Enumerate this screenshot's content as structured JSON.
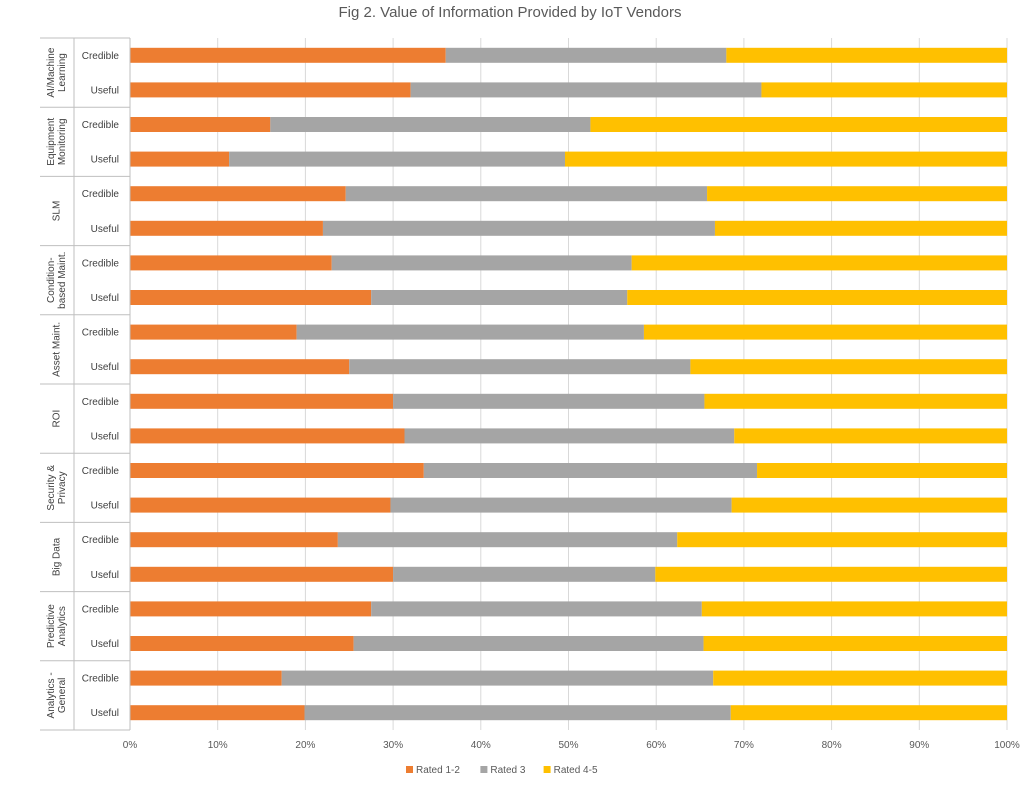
{
  "chart_data": {
    "type": "bar",
    "orientation": "horizontal",
    "stacked": "percent",
    "title": "Fig 2. Value of Information Provided by IoT Vendors",
    "xlabel": "",
    "ylabel": "",
    "xlim": [
      0,
      100
    ],
    "x_ticks": [
      "0%",
      "10%",
      "20%",
      "30%",
      "40%",
      "50%",
      "60%",
      "70%",
      "80%",
      "90%",
      "100%"
    ],
    "grid": true,
    "legend_position": "bottom",
    "groups": [
      {
        "label_lines": [
          "AI/Machine",
          "Learning"
        ],
        "categories": [
          "Credible",
          "Useful"
        ]
      },
      {
        "label_lines": [
          "Equipment",
          "Monitoring"
        ],
        "categories": [
          "Credible",
          "Useful"
        ]
      },
      {
        "label_lines": [
          "SLM"
        ],
        "categories": [
          "Credible",
          "Useful"
        ]
      },
      {
        "label_lines": [
          "Condition-",
          "based Maint."
        ],
        "categories": [
          "Credible",
          "Useful"
        ]
      },
      {
        "label_lines": [
          "Asset Maint."
        ],
        "categories": [
          "Credible",
          "Useful"
        ]
      },
      {
        "label_lines": [
          "ROI"
        ],
        "categories": [
          "Credible",
          "Useful"
        ]
      },
      {
        "label_lines": [
          "Security &",
          "Privacy"
        ],
        "categories": [
          "Credible",
          "Useful"
        ]
      },
      {
        "label_lines": [
          "Big Data"
        ],
        "categories": [
          "Credible",
          "Useful"
        ]
      },
      {
        "label_lines": [
          "Predictive",
          "Analytics"
        ],
        "categories": [
          "Credible",
          "Useful"
        ]
      },
      {
        "label_lines": [
          "Analytics -",
          "General"
        ],
        "categories": [
          "Credible",
          "Useful"
        ]
      }
    ],
    "series": [
      {
        "name": "Rated 1-2",
        "color": "#ED7D31",
        "values": [
          36,
          32,
          16,
          11.3,
          24.6,
          22,
          23,
          27.5,
          19,
          25,
          30,
          31.3,
          33.5,
          29.7,
          23.7,
          30,
          27.5,
          25.5,
          17.3,
          19.9
        ]
      },
      {
        "name": "Rated 3",
        "color": "#A5A5A5",
        "values": [
          32,
          40,
          36.5,
          38.3,
          41.2,
          44.7,
          34.2,
          29.2,
          39.6,
          38.9,
          35.5,
          37.6,
          38,
          38.9,
          38.7,
          29.9,
          37.7,
          39.9,
          49.2,
          48.6
        ]
      },
      {
        "name": "Rated 4-5",
        "color": "#FFC000",
        "values": [
          32,
          28,
          47.5,
          50.4,
          34.2,
          33.3,
          42.8,
          43.3,
          41.4,
          36.1,
          34.5,
          31.1,
          28.5,
          31.4,
          37.6,
          40.1,
          34.8,
          34.6,
          33.5,
          31.5
        ]
      }
    ]
  }
}
